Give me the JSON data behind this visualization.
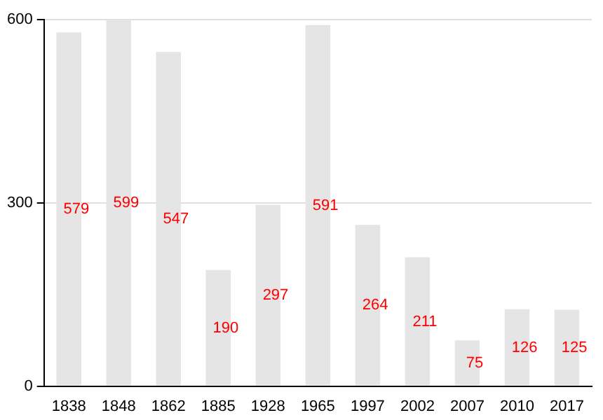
{
  "chart_data": {
    "type": "bar",
    "categories": [
      "1838",
      "1848",
      "1862",
      "1885",
      "1928",
      "1965",
      "1997",
      "2002",
      "2007",
      "2010",
      "2017"
    ],
    "values": [
      579,
      599,
      547,
      190,
      297,
      591,
      264,
      211,
      75,
      126,
      125
    ],
    "color": "#e5e5e5",
    "ylim": [
      0,
      600
    ],
    "yticks": [
      0,
      300,
      600
    ],
    "grid": "y",
    "data_labels": true
  }
}
